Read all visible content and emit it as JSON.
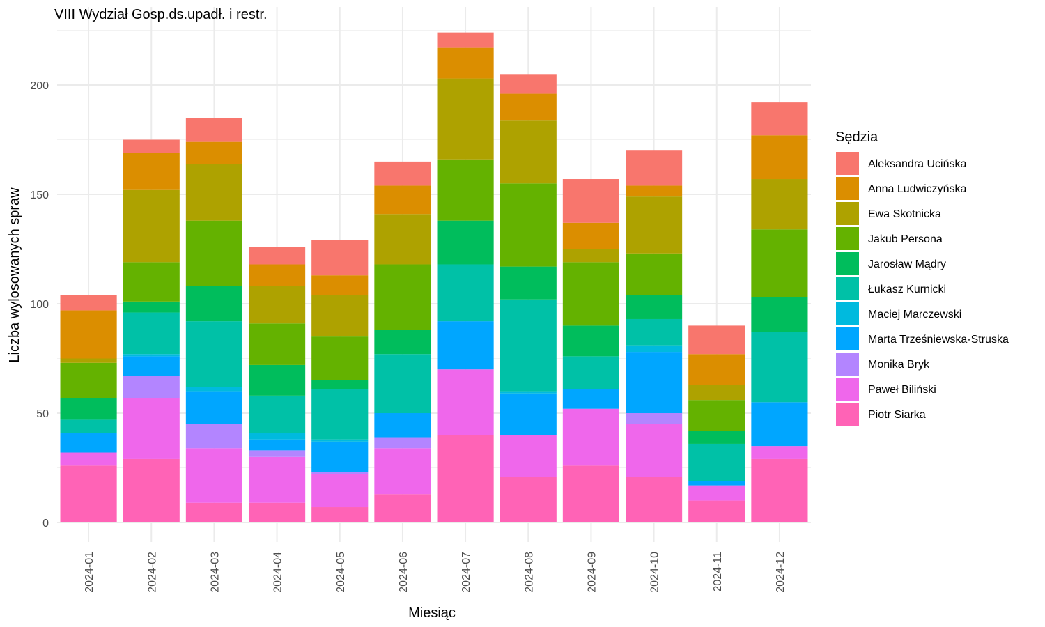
{
  "chart_data": {
    "type": "bar",
    "stacked": true,
    "title": "VIII Wydział Gosp.ds.upadł. i restr.",
    "xlabel": "Miesiąc",
    "ylabel": "Liczba wylosowanych spraw",
    "ylim": [
      0,
      230
    ],
    "yticks": [
      0,
      50,
      100,
      150,
      200
    ],
    "grid": true,
    "legend_title": "Sędzia",
    "legend_position": "right",
    "categories": [
      "2024-01",
      "2024-02",
      "2024-03",
      "2024-04",
      "2024-05",
      "2024-06",
      "2024-07",
      "2024-08",
      "2024-09",
      "2024-10",
      "2024-11",
      "2024-12"
    ],
    "series": [
      {
        "name": "Aleksandra Ucińska",
        "color": "#F8766D",
        "values": [
          7,
          6,
          11,
          8,
          16,
          11,
          7,
          9,
          20,
          16,
          13,
          15
        ]
      },
      {
        "name": "Anna Ludwiczyńska",
        "color": "#DB8E00",
        "values": [
          22,
          17,
          10,
          10,
          9,
          13,
          14,
          12,
          12,
          5,
          14,
          20
        ]
      },
      {
        "name": "Ewa Skotnicka",
        "color": "#AEA200",
        "values": [
          2,
          33,
          26,
          17,
          19,
          23,
          37,
          29,
          6,
          26,
          7,
          23
        ]
      },
      {
        "name": "Jakub Persona",
        "color": "#64B200",
        "values": [
          16,
          18,
          30,
          19,
          20,
          30,
          28,
          38,
          29,
          19,
          14,
          31
        ]
      },
      {
        "name": "Jarosław Mądry",
        "color": "#00BD5C",
        "values": [
          10,
          5,
          16,
          14,
          4,
          11,
          20,
          15,
          14,
          11,
          6,
          16
        ]
      },
      {
        "name": "Łukasz Kurnicki",
        "color": "#00C1A7",
        "values": [
          6,
          19,
          30,
          17,
          23,
          27,
          26,
          42,
          15,
          12,
          17,
          32
        ]
      },
      {
        "name": "Maciej Marczewski",
        "color": "#00BADE",
        "values": [
          0,
          1,
          2,
          3,
          1,
          0,
          0,
          1,
          0,
          3,
          0,
          0
        ]
      },
      {
        "name": "Marta Trześniewska-Struska",
        "color": "#00A6FF",
        "values": [
          9,
          9,
          15,
          5,
          14,
          11,
          22,
          19,
          9,
          28,
          2,
          20
        ]
      },
      {
        "name": "Monika Bryk",
        "color": "#B385FF",
        "values": [
          0,
          10,
          11,
          3,
          1,
          5,
          0,
          0,
          0,
          5,
          0,
          0
        ]
      },
      {
        "name": "Paweł Biliński",
        "color": "#EF67EB",
        "values": [
          6,
          28,
          25,
          21,
          15,
          21,
          30,
          19,
          26,
          24,
          7,
          6
        ]
      },
      {
        "name": "Piotr Siarka",
        "color": "#FF63B6",
        "values": [
          26,
          29,
          9,
          9,
          7,
          13,
          40,
          21,
          26,
          21,
          10,
          29
        ]
      }
    ]
  }
}
